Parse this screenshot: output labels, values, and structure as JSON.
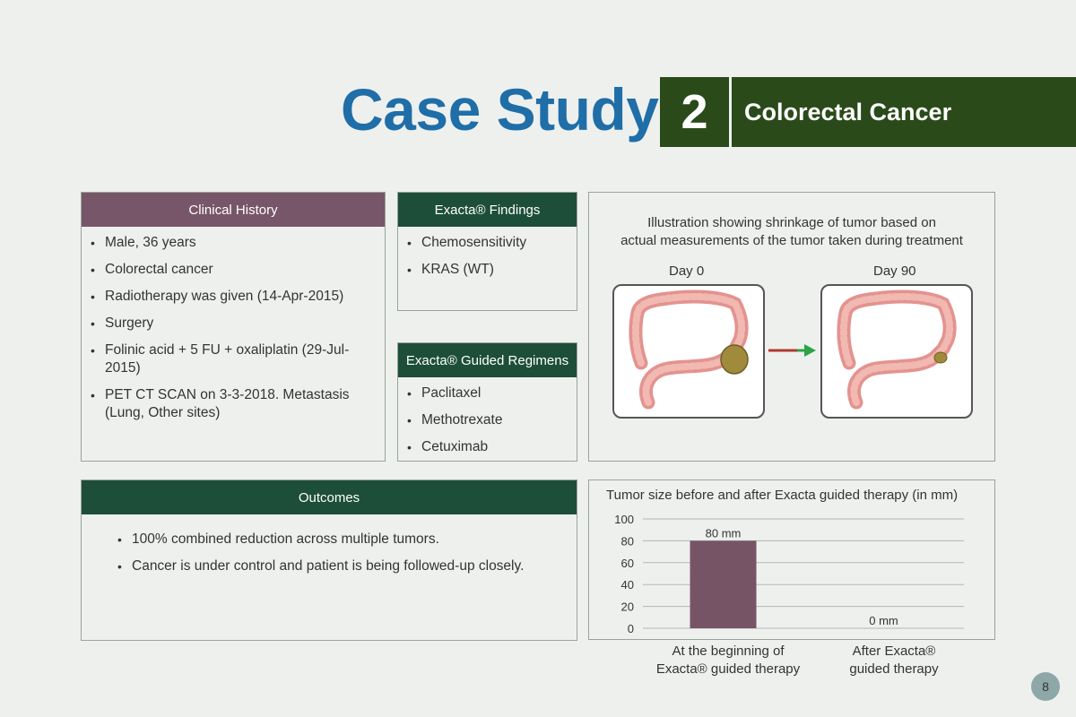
{
  "header": {
    "title": "Case Study",
    "number": "2",
    "subtitle": "Colorectal Cancer"
  },
  "clinical_history": {
    "heading": "Clinical History",
    "items": [
      "Male, 36 years",
      "Colorectal cancer",
      "Radiotherapy was given (14-Apr-2015)",
      "Surgery",
      "Folinic acid + 5 FU + oxaliplatin (29-Jul-2015)",
      "PET CT SCAN on 3-3-2018. Metastasis (Lung, Other sites)"
    ]
  },
  "findings": {
    "heading": "Exacta® Findings",
    "items": [
      "Chemosensitivity",
      "KRAS (WT)"
    ]
  },
  "regimens": {
    "heading": "Exacta® Guided Regimens",
    "items": [
      "Paclitaxel",
      "Methotrexate",
      "Cetuximab"
    ]
  },
  "illustration": {
    "caption_line1": "Illustration showing shrinkage of tumor based on",
    "caption_line2": "actual measurements of the tumor taken during treatment",
    "day_start": "Day 0",
    "day_end": "Day 90"
  },
  "outcomes": {
    "heading": "Outcomes",
    "items": [
      "100% combined reduction across multiple tumors.",
      "Cancer is under control and patient is being followed-up closely."
    ]
  },
  "chart_data": {
    "type": "bar",
    "title": "Tumor size before and after Exacta guided therapy (in mm)",
    "categories": [
      "At the beginning of Exacta® guided therapy",
      "After Exacta® guided therapy"
    ],
    "category_lines": [
      [
        "At the beginning of",
        "Exacta® guided therapy"
      ],
      [
        "After Exacta®",
        "guided therapy"
      ]
    ],
    "values": [
      80,
      0
    ],
    "data_labels": [
      "80 mm",
      "0 mm"
    ],
    "ylim": [
      0,
      100
    ],
    "yticks": [
      "0",
      "20",
      "40",
      "60",
      "80",
      "100"
    ],
    "bar_color": "#765465",
    "grid": true
  },
  "page_number": "8",
  "colors": {
    "title_blue": "#1f6ea8",
    "banner_green": "#2a4a1a",
    "head_purple": "#785669",
    "head_green": "#1d4e3a",
    "arrow_red": "#b03a2e",
    "arrow_green": "#2aa34a"
  }
}
